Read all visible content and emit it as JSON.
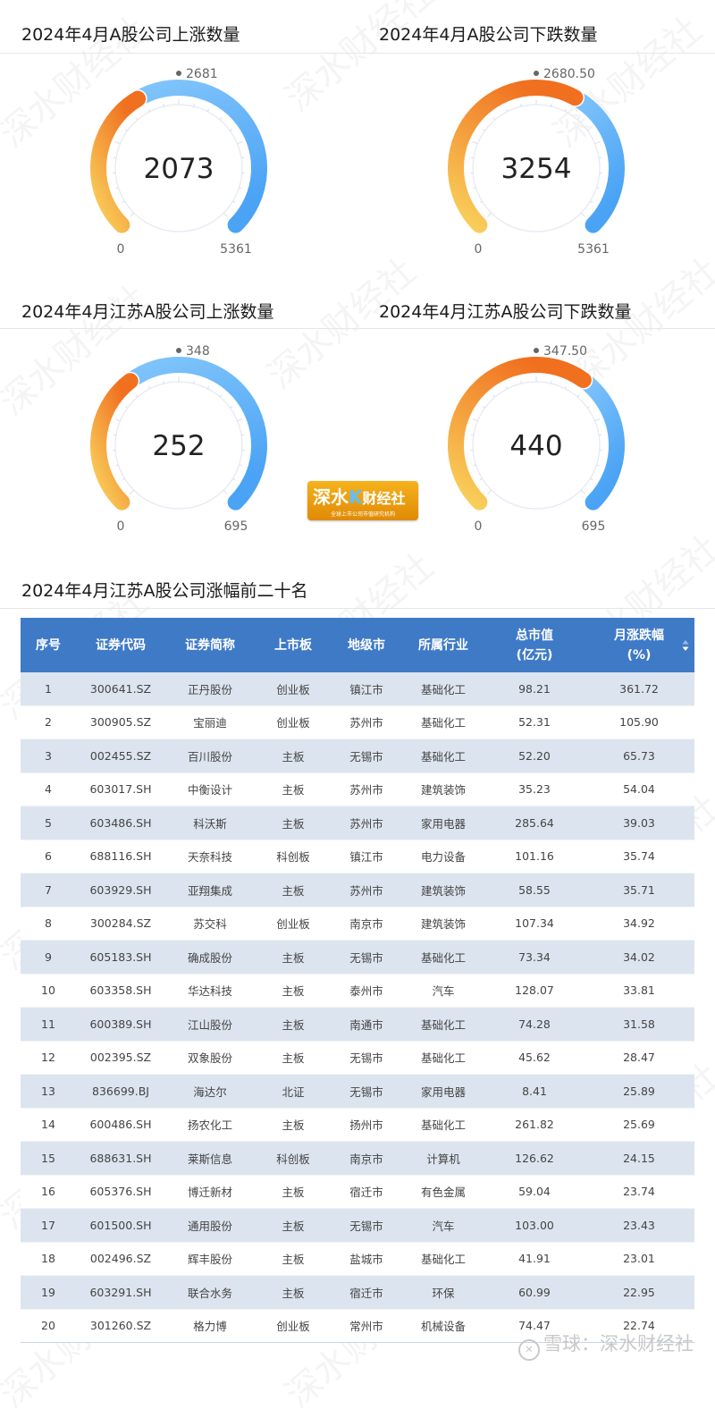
{
  "gauges": [
    {
      "title": "2024年4月A股公司上涨数量",
      "value": 2073,
      "value_label": "2073",
      "min": 0,
      "min_label": "0",
      "max": 5361,
      "max_label": "5361",
      "mid_label": "2681",
      "value_color_start": "#f9d35d",
      "value_color_end": "#f07020",
      "rest_color_start": "#80c4fb",
      "rest_color_end": "#4aa3f5"
    },
    {
      "title": "2024年4月A股公司下跌数量",
      "value": 3254,
      "value_label": "3254",
      "min": 0,
      "min_label": "0",
      "max": 5361,
      "max_label": "5361",
      "mid_label": "2680.50",
      "value_color_start": "#f9d35d",
      "value_color_end": "#f07020",
      "rest_color_start": "#80c4fb",
      "rest_color_end": "#4aa3f5"
    },
    {
      "title": "2024年4月江苏A股公司上涨数量",
      "value": 252,
      "value_label": "252",
      "min": 0,
      "min_label": "0",
      "max": 695,
      "max_label": "695",
      "mid_label": "348",
      "value_color_start": "#f9d35d",
      "value_color_end": "#f07020",
      "rest_color_start": "#80c4fb",
      "rest_color_end": "#4aa3f5"
    },
    {
      "title": "2024年4月江苏A股公司下跌数量",
      "value": 440,
      "value_label": "440",
      "min": 0,
      "min_label": "0",
      "max": 695,
      "max_label": "695",
      "mid_label": "347.50",
      "value_color_start": "#f9d35d",
      "value_color_end": "#f07020",
      "rest_color_start": "#80c4fb",
      "rest_color_end": "#4aa3f5"
    }
  ],
  "logo": {
    "main_a": "深水",
    "main_k": "K",
    "main_b": "财经社",
    "sub": "全球上市公司市值研究机构"
  },
  "table": {
    "title": "2024年4月江苏A股公司涨幅前二十名",
    "header_color": "#3f7ac7",
    "stripe_color": "#dce5ef",
    "columns": [
      {
        "line1": "序号",
        "line2": ""
      },
      {
        "line1": "证券代码",
        "line2": ""
      },
      {
        "line1": "证券简称",
        "line2": ""
      },
      {
        "line1": "上市板",
        "line2": ""
      },
      {
        "line1": "地级市",
        "line2": ""
      },
      {
        "line1": "所属行业",
        "line2": ""
      },
      {
        "line1": "总市值",
        "line2": "(亿元)"
      },
      {
        "line1": "月涨跌幅",
        "line2": "(%)"
      }
    ],
    "rows": [
      [
        "1",
        "300641.SZ",
        "正丹股份",
        "创业板",
        "镇江市",
        "基础化工",
        "98.21",
        "361.72"
      ],
      [
        "2",
        "300905.SZ",
        "宝丽迪",
        "创业板",
        "苏州市",
        "基础化工",
        "52.31",
        "105.90"
      ],
      [
        "3",
        "002455.SZ",
        "百川股份",
        "主板",
        "无锡市",
        "基础化工",
        "52.20",
        "65.73"
      ],
      [
        "4",
        "603017.SH",
        "中衡设计",
        "主板",
        "苏州市",
        "建筑装饰",
        "35.23",
        "54.04"
      ],
      [
        "5",
        "603486.SH",
        "科沃斯",
        "主板",
        "苏州市",
        "家用电器",
        "285.64",
        "39.03"
      ],
      [
        "6",
        "688116.SH",
        "天奈科技",
        "科创板",
        "镇江市",
        "电力设备",
        "101.16",
        "35.74"
      ],
      [
        "7",
        "603929.SH",
        "亚翔集成",
        "主板",
        "苏州市",
        "建筑装饰",
        "58.55",
        "35.71"
      ],
      [
        "8",
        "300284.SZ",
        "苏交科",
        "创业板",
        "南京市",
        "建筑装饰",
        "107.34",
        "34.92"
      ],
      [
        "9",
        "605183.SH",
        "确成股份",
        "主板",
        "无锡市",
        "基础化工",
        "73.34",
        "34.02"
      ],
      [
        "10",
        "603358.SH",
        "华达科技",
        "主板",
        "泰州市",
        "汽车",
        "128.07",
        "33.81"
      ],
      [
        "11",
        "600389.SH",
        "江山股份",
        "主板",
        "南通市",
        "基础化工",
        "74.28",
        "31.58"
      ],
      [
        "12",
        "002395.SZ",
        "双象股份",
        "主板",
        "无锡市",
        "基础化工",
        "45.62",
        "28.47"
      ],
      [
        "13",
        "836699.BJ",
        "海达尔",
        "北证",
        "无锡市",
        "家用电器",
        "8.41",
        "25.89"
      ],
      [
        "14",
        "600486.SH",
        "扬农化工",
        "主板",
        "扬州市",
        "基础化工",
        "261.82",
        "25.69"
      ],
      [
        "15",
        "688631.SH",
        "莱斯信息",
        "科创板",
        "南京市",
        "计算机",
        "126.62",
        "24.15"
      ],
      [
        "16",
        "605376.SH",
        "博迁新材",
        "主板",
        "宿迁市",
        "有色金属",
        "59.04",
        "23.74"
      ],
      [
        "17",
        "601500.SH",
        "通用股份",
        "主板",
        "无锡市",
        "汽车",
        "103.00",
        "23.43"
      ],
      [
        "18",
        "002496.SZ",
        "辉丰股份",
        "主板",
        "盐城市",
        "基础化工",
        "41.91",
        "23.01"
      ],
      [
        "19",
        "603291.SH",
        "联合水务",
        "主板",
        "宿迁市",
        "环保",
        "60.99",
        "22.95"
      ],
      [
        "20",
        "301260.SZ",
        "格力博",
        "创业板",
        "常州市",
        "机械设备",
        "74.47",
        "22.74"
      ]
    ]
  },
  "footer": {
    "brand_icon": "xueqiu-logo-icon",
    "text": "雪球：深水财经社"
  },
  "watermark_text": "深水财经社",
  "chart_data": [
    {
      "type": "gauge",
      "title": "2024年4月A股公司上涨数量",
      "value": 2073,
      "min": 0,
      "max": 5361,
      "midpoint_label": 2681
    },
    {
      "type": "gauge",
      "title": "2024年4月A股公司下跌数量",
      "value": 3254,
      "min": 0,
      "max": 5361,
      "midpoint_label": 2680.5
    },
    {
      "type": "gauge",
      "title": "2024年4月江苏A股公司上涨数量",
      "value": 252,
      "min": 0,
      "max": 695,
      "midpoint_label": 348
    },
    {
      "type": "gauge",
      "title": "2024年4月江苏A股公司下跌数量",
      "value": 440,
      "min": 0,
      "max": 695,
      "midpoint_label": 347.5
    },
    {
      "type": "table",
      "title": "2024年4月江苏A股公司涨幅前二十名",
      "columns": [
        "序号",
        "证券代码",
        "证券简称",
        "上市板",
        "地级市",
        "所属行业",
        "总市值(亿元)",
        "月涨跌幅(%)"
      ],
      "rows": [
        [
          1,
          "300641.SZ",
          "正丹股份",
          "创业板",
          "镇江市",
          "基础化工",
          98.21,
          361.72
        ],
        [
          2,
          "300905.SZ",
          "宝丽迪",
          "创业板",
          "苏州市",
          "基础化工",
          52.31,
          105.9
        ],
        [
          3,
          "002455.SZ",
          "百川股份",
          "主板",
          "无锡市",
          "基础化工",
          52.2,
          65.73
        ],
        [
          4,
          "603017.SH",
          "中衡设计",
          "主板",
          "苏州市",
          "建筑装饰",
          35.23,
          54.04
        ],
        [
          5,
          "603486.SH",
          "科沃斯",
          "主板",
          "苏州市",
          "家用电器",
          285.64,
          39.03
        ],
        [
          6,
          "688116.SH",
          "天奈科技",
          "科创板",
          "镇江市",
          "电力设备",
          101.16,
          35.74
        ],
        [
          7,
          "603929.SH",
          "亚翔集成",
          "主板",
          "苏州市",
          "建筑装饰",
          58.55,
          35.71
        ],
        [
          8,
          "300284.SZ",
          "苏交科",
          "创业板",
          "南京市",
          "建筑装饰",
          107.34,
          34.92
        ],
        [
          9,
          "605183.SH",
          "确成股份",
          "主板",
          "无锡市",
          "基础化工",
          73.34,
          34.02
        ],
        [
          10,
          "603358.SH",
          "华达科技",
          "主板",
          "泰州市",
          "汽车",
          128.07,
          33.81
        ],
        [
          11,
          "600389.SH",
          "江山股份",
          "主板",
          "南通市",
          "基础化工",
          74.28,
          31.58
        ],
        [
          12,
          "002395.SZ",
          "双象股份",
          "主板",
          "无锡市",
          "基础化工",
          45.62,
          28.47
        ],
        [
          13,
          "836699.BJ",
          "海达尔",
          "北证",
          "无锡市",
          "家用电器",
          8.41,
          25.89
        ],
        [
          14,
          "600486.SH",
          "扬农化工",
          "主板",
          "扬州市",
          "基础化工",
          261.82,
          25.69
        ],
        [
          15,
          "688631.SH",
          "莱斯信息",
          "科创板",
          "南京市",
          "计算机",
          126.62,
          24.15
        ],
        [
          16,
          "605376.SH",
          "博迁新材",
          "主板",
          "宿迁市",
          "有色金属",
          59.04,
          23.74
        ],
        [
          17,
          "601500.SH",
          "通用股份",
          "主板",
          "无锡市",
          "汽车",
          103.0,
          23.43
        ],
        [
          18,
          "002496.SZ",
          "辉丰股份",
          "主板",
          "盐城市",
          "基础化工",
          41.91,
          23.01
        ],
        [
          19,
          "603291.SH",
          "联合水务",
          "主板",
          "宿迁市",
          "环保",
          60.99,
          22.95
        ],
        [
          20,
          "301260.SZ",
          "格力博",
          "创业板",
          "常州市",
          "机械设备",
          74.47,
          22.74
        ]
      ]
    }
  ]
}
